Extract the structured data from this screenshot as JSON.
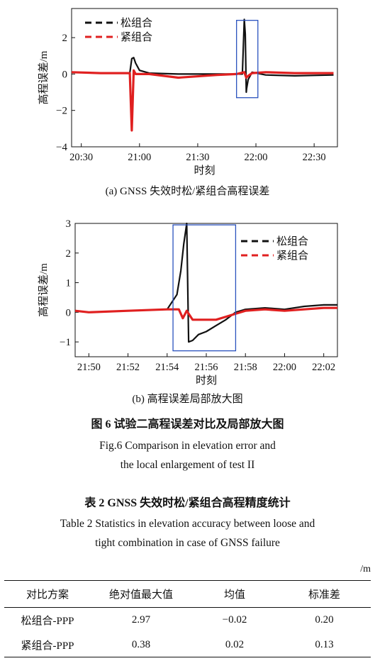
{
  "chart_data": [
    {
      "type": "line",
      "ylabel": "高程误差/m",
      "xlabel": "时刻",
      "caption": "(a) GNSS 失效时松/紧组合高程误差",
      "xticks": [
        "20:30",
        "21:00",
        "21:30",
        "22:00",
        "22:30"
      ],
      "yticks": [
        "−4",
        "−2",
        "0",
        "2"
      ],
      "ylim": [
        -4,
        3.6
      ],
      "xlim": [
        "20:25",
        "22:42"
      ],
      "legend_position": "top-left",
      "highlight_box": {
        "x": [
          "21:50",
          "22:01"
        ],
        "y": [
          -1.3,
          2.95
        ]
      },
      "series": [
        {
          "name": "松组合",
          "color": "#111111",
          "x": [
            "20:25",
            "20:40",
            "20:55",
            "20:56",
            "20:57",
            "20:58",
            "21:00",
            "21:05",
            "21:20",
            "21:40",
            "21:53",
            "21:54",
            "21:54.5",
            "21:55",
            "21:55.2",
            "21:56",
            "21:58",
            "22:05",
            "22:20",
            "22:40"
          ],
          "values": [
            0.1,
            0.05,
            0.05,
            0.85,
            0.9,
            0.6,
            0.2,
            0.05,
            0.0,
            0.0,
            0.0,
            3.0,
            2.2,
            -1.0,
            -0.8,
            -0.3,
            0.1,
            -0.05,
            -0.1,
            -0.05
          ]
        },
        {
          "name": "紧组合",
          "color": "#e02020",
          "x": [
            "20:25",
            "20:40",
            "20:55",
            "20:56",
            "20:57",
            "20:58",
            "21:05",
            "21:20",
            "21:40",
            "21:50",
            "21:54",
            "21:55",
            "21:56",
            "21:58",
            "22:05",
            "22:20",
            "22:40"
          ],
          "values": [
            0.1,
            0.05,
            0.05,
            -3.1,
            0.2,
            0.0,
            0.0,
            -0.2,
            -0.05,
            0.0,
            0.1,
            -0.2,
            -0.1,
            0.05,
            0.1,
            0.05,
            0.05
          ]
        }
      ]
    },
    {
      "type": "line",
      "ylabel": "高程误差/m",
      "xlabel": "时刻",
      "caption": "(b) 高程误差局部放大图",
      "xticks": [
        "21:50",
        "21:52",
        "21:54",
        "21:56",
        "21:58",
        "22:00",
        "22:02"
      ],
      "yticks": [
        "−1",
        "0",
        "1",
        "2",
        "3"
      ],
      "ylim": [
        -1.5,
        3
      ],
      "xlim": [
        "21:49.3",
        "22:02.7"
      ],
      "legend_position": "top-right",
      "highlight_box": {
        "x": [
          "21:54.3",
          "21:57.5"
        ],
        "y": [
          -1.3,
          2.95
        ]
      },
      "series": [
        {
          "name": "松组合",
          "color": "#111111",
          "x": [
            "21:49.3",
            "21:50",
            "21:52",
            "21:54",
            "21:54.5",
            "21:54.7",
            "21:54.85",
            "21:55",
            "21:55.1",
            "21:55.3",
            "21:55.6",
            "21:56",
            "21:56.5",
            "21:57",
            "21:57.5",
            "21:58",
            "21:59",
            "22:00",
            "22:01",
            "22:02",
            "22:02.7"
          ],
          "values": [
            0.05,
            0.0,
            0.05,
            0.1,
            0.6,
            1.4,
            2.3,
            3.0,
            -1.0,
            -0.95,
            -0.75,
            -0.65,
            -0.45,
            -0.25,
            0.0,
            0.1,
            0.15,
            0.1,
            0.2,
            0.25,
            0.25
          ]
        },
        {
          "name": "紧组合",
          "color": "#e02020",
          "x": [
            "21:49.3",
            "21:50",
            "21:52",
            "21:54",
            "21:54.6",
            "21:54.8",
            "21:55",
            "21:55.3",
            "21:56",
            "21:56.5",
            "21:57",
            "21:57.5",
            "21:58",
            "21:59",
            "22:00",
            "22:01",
            "22:02",
            "22:02.7"
          ],
          "values": [
            0.05,
            0.0,
            0.05,
            0.1,
            0.1,
            -0.2,
            0.05,
            -0.25,
            -0.25,
            -0.25,
            -0.15,
            -0.05,
            0.05,
            0.1,
            0.05,
            0.1,
            0.15,
            0.15
          ]
        }
      ]
    }
  ],
  "figure": {
    "title_cn": "图 6    试验二高程误差对比及局部放大图",
    "title_en_1": "Fig.6    Comparison in elevation error and",
    "title_en_2": "the local enlargement of test II"
  },
  "table": {
    "title_cn": "表 2    GNSS 失效时松/紧组合高程精度统计",
    "title_en_1": "Table 2    Statistics in elevation accuracy between loose and",
    "title_en_2": "tight combination in case of GNSS failure",
    "unit": "/m",
    "headers": [
      "对比方案",
      "绝对值最大值",
      "均值",
      "标准差"
    ],
    "rows": [
      [
        "松组合-PPP",
        "2.97",
        "−0.02",
        "0.20"
      ],
      [
        "紧组合-PPP",
        "0.38",
        "0.02",
        "0.13"
      ]
    ]
  }
}
